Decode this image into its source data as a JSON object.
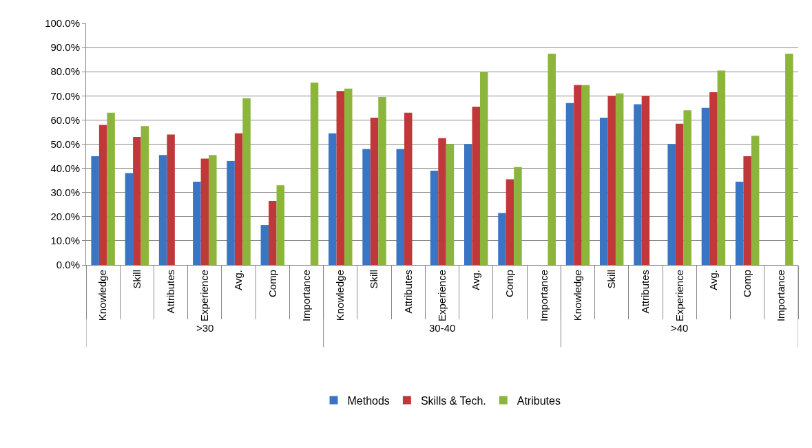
{
  "chart_data": {
    "type": "bar",
    "categories": [
      "Knowledge",
      "Skill",
      "Attributes",
      "Experience",
      "Avg.",
      "Comp",
      "Importance",
      "Knowledge",
      "Skill",
      "Attributes",
      "Experience",
      "Avg.",
      "Comp",
      "Importance",
      "Knowledge",
      "Skill",
      "Attributes",
      "Experience",
      "Avg.",
      "Comp",
      "Importance"
    ],
    "series": [
      {
        "name": "Methods",
        "color": "#3a75c4",
        "values": [
          45,
          38,
          45.5,
          34.5,
          43,
          16.5,
          null,
          54.5,
          48,
          48,
          39,
          50,
          21.5,
          null,
          67,
          61,
          66.5,
          50,
          65,
          34.5,
          null
        ]
      },
      {
        "name": "Skills & Tech.",
        "color": "#c0383a",
        "values": [
          58,
          53,
          54,
          44,
          54.5,
          26.5,
          null,
          72,
          61,
          63,
          52.5,
          65.5,
          35.5,
          null,
          74.5,
          70,
          70,
          58.5,
          71.5,
          45,
          null
        ]
      },
      {
        "name": "Atributes",
        "color": "#8cb53c",
        "values": [
          63,
          57.5,
          null,
          45.5,
          69,
          33,
          75.5,
          73,
          69.5,
          null,
          50,
          80,
          40.5,
          87.5,
          74.5,
          71,
          null,
          64,
          80.5,
          53.5,
          87.5
        ]
      }
    ],
    "annotations": [
      ">30",
      "30-40",
      ">40"
    ],
    "ylim": [
      0,
      100
    ],
    "yticks": [
      {
        "value": 0,
        "label": "0.0%"
      },
      {
        "value": 10,
        "label": "10.0%"
      },
      {
        "value": 20,
        "label": "20.0%"
      },
      {
        "value": 30,
        "label": "30.0%"
      },
      {
        "value": 40,
        "label": "40.0%"
      },
      {
        "value": 50,
        "label": "50.0%"
      },
      {
        "value": 60,
        "label": "60.0%"
      },
      {
        "value": 70,
        "label": "70.0%"
      },
      {
        "value": 80,
        "label": "80.0%"
      },
      {
        "value": 90,
        "label": "90.0%"
      },
      {
        "value": 100,
        "label": "100.0%"
      }
    ],
    "grid": "y",
    "legend": "bottom"
  }
}
